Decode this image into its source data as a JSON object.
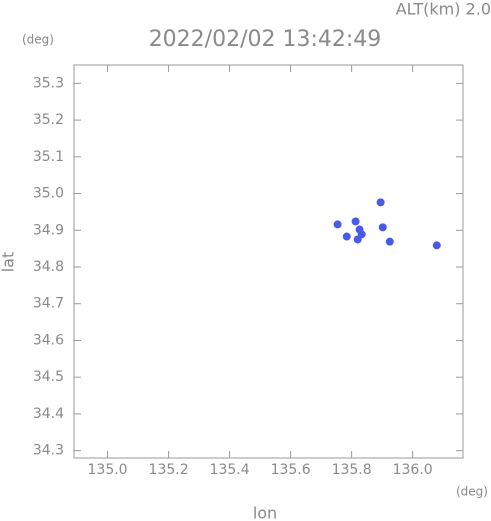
{
  "chart_data": {
    "type": "scatter",
    "title": "2022/02/02 13:42:49",
    "subtitle": "ALT(km) 2.0",
    "y_unit": "(deg)",
    "x_unit": "(deg)",
    "x_label": "lon",
    "y_label": "lat",
    "xlim": [
      134.89,
      136.165
    ],
    "ylim": [
      34.28,
      35.35
    ],
    "xticks": [
      {
        "value": 135.0,
        "label": "135.0"
      },
      {
        "value": 135.2,
        "label": "135.2"
      },
      {
        "value": 135.4,
        "label": "135.4"
      },
      {
        "value": 135.6,
        "label": "135.6"
      },
      {
        "value": 135.8,
        "label": "135.8"
      },
      {
        "value": 136.0,
        "label": "136.0"
      }
    ],
    "yticks": [
      {
        "value": 34.3,
        "label": "34.3"
      },
      {
        "value": 34.4,
        "label": "34.4"
      },
      {
        "value": 34.5,
        "label": "34.5"
      },
      {
        "value": 34.6,
        "label": "34.6"
      },
      {
        "value": 34.7,
        "label": "34.7"
      },
      {
        "value": 34.8,
        "label": "34.8"
      },
      {
        "value": 34.9,
        "label": "34.9"
      },
      {
        "value": 35.0,
        "label": "35.0"
      },
      {
        "value": 35.1,
        "label": "35.1"
      },
      {
        "value": 35.2,
        "label": "35.2"
      },
      {
        "value": 35.3,
        "label": "35.3"
      }
    ],
    "series": [
      {
        "color": "#4a5ae8",
        "x": [
          135.826,
          135.813,
          135.833,
          135.82,
          135.754,
          135.895,
          135.902,
          135.925,
          136.079,
          135.784
        ],
        "values": [
          34.902,
          34.924,
          34.889,
          34.875,
          34.916,
          34.976,
          34.908,
          34.869,
          34.859,
          34.883
        ]
      }
    ]
  }
}
